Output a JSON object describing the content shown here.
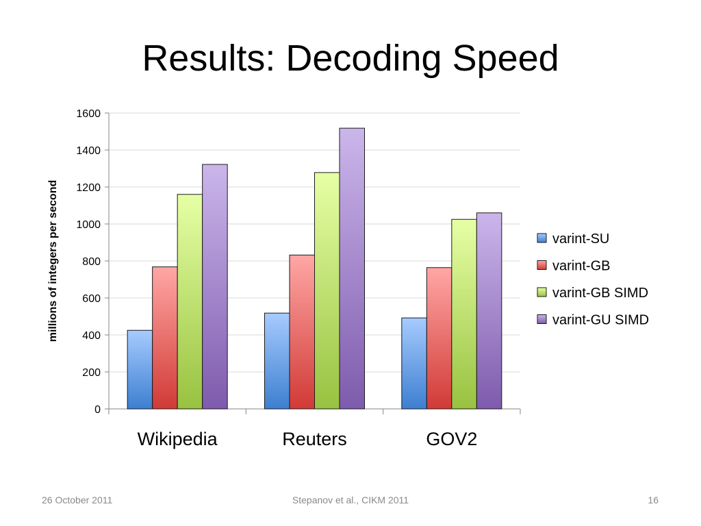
{
  "slide": {
    "title": "Results:  Decoding Speed"
  },
  "footer": {
    "date": "26 October 2011",
    "center": "Stepanov et al., CIKM 2011",
    "page": "16"
  },
  "chart_data": {
    "type": "bar",
    "title": "",
    "xlabel": "",
    "ylabel": "millions of integers per second",
    "ylim": [
      0,
      1600
    ],
    "yticks": [
      0,
      200,
      400,
      600,
      800,
      1000,
      1200,
      1400,
      1600
    ],
    "grid": true,
    "legend_position": "right",
    "categories": [
      "Wikipedia",
      "Reuters",
      "GOV2"
    ],
    "series": [
      {
        "name": "varint-SU",
        "values": [
          425,
          518,
          492
        ],
        "color_light": "#A7CBFE",
        "color_dark": "#3D7FD1"
      },
      {
        "name": "varint-GB",
        "values": [
          768,
          832,
          764
        ],
        "color_light": "#FFA7A5",
        "color_dark": "#D13A36"
      },
      {
        "name": "varint-GB SIMD",
        "values": [
          1160,
          1278,
          1025
        ],
        "color_light": "#E6FFA5",
        "color_dark": "#98C240"
      },
      {
        "name": "varint-GU SIMD",
        "values": [
          1322,
          1518,
          1060
        ],
        "color_light": "#CBB6EB",
        "color_dark": "#7E5BAD"
      }
    ]
  }
}
